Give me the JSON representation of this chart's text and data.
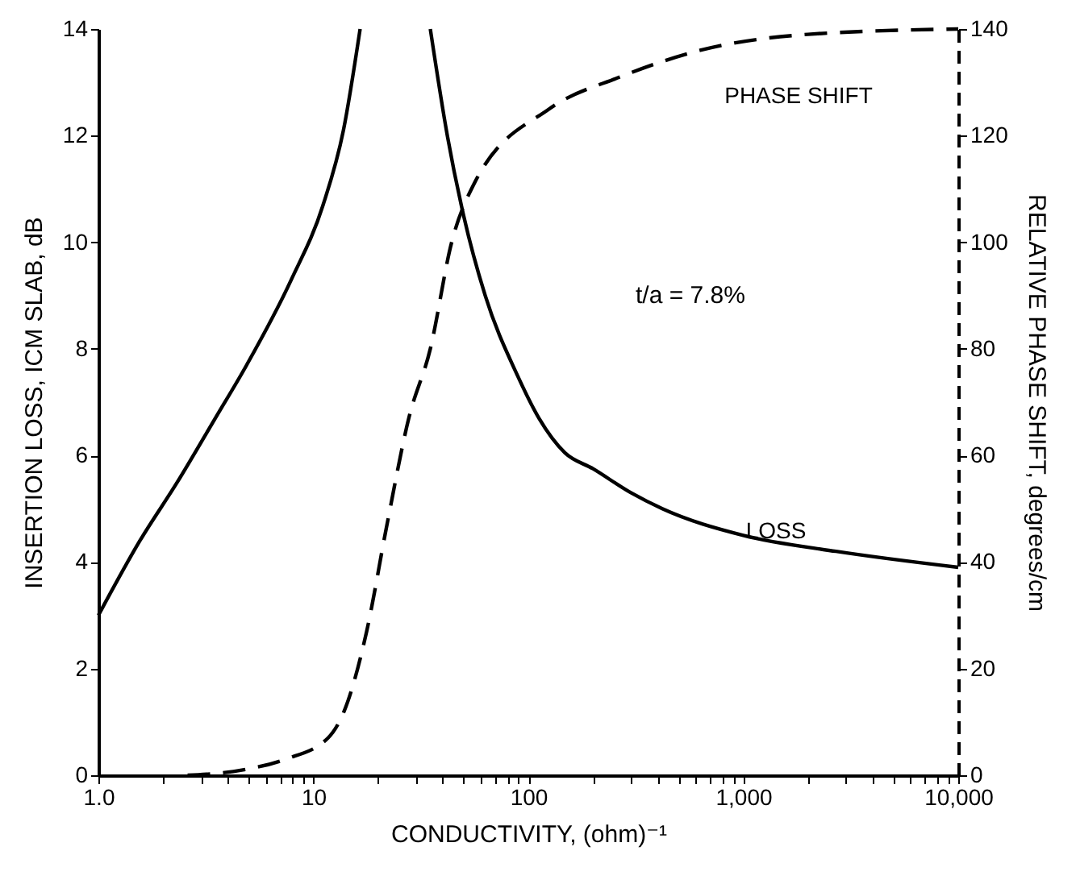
{
  "chart_data": {
    "type": "line",
    "xlabel": "CONDUCTIVITY, (ohm)⁻¹",
    "ylabel": "INSERTION LOSS, ICM SLAB, dB",
    "y2label": "RELATIVE PHASE SHIFT, degrees/cm",
    "annotations": [
      "t/a = 7.8%"
    ],
    "log": "x",
    "grid": false,
    "marker": "none",
    "xlim": [
      1,
      10000
    ],
    "xticks": [
      {
        "value": 1,
        "label": "1.0"
      },
      {
        "value": 2,
        "label": null
      },
      {
        "value": 3,
        "label": null
      },
      {
        "value": 4,
        "label": null
      },
      {
        "value": 5,
        "label": null
      },
      {
        "value": 6,
        "label": null
      },
      {
        "value": 7,
        "label": null
      },
      {
        "value": 8,
        "label": null
      },
      {
        "value": 9,
        "label": null
      },
      10,
      {
        "value": 20,
        "label": null
      },
      {
        "value": 30,
        "label": null
      },
      {
        "value": 40,
        "label": null
      },
      {
        "value": 50,
        "label": null
      },
      {
        "value": 60,
        "label": null
      },
      {
        "value": 70,
        "label": null
      },
      {
        "value": 80,
        "label": null
      },
      {
        "value": 90,
        "label": null
      },
      100,
      {
        "value": 200,
        "label": null
      },
      {
        "value": 300,
        "label": null
      },
      {
        "value": 400,
        "label": null
      },
      {
        "value": 500,
        "label": null
      },
      {
        "value": 600,
        "label": null
      },
      {
        "value": 700,
        "label": null
      },
      {
        "value": 800,
        "label": null
      },
      {
        "value": 900,
        "label": null
      },
      {
        "value": 1000,
        "label": "1,000"
      },
      {
        "value": 2000,
        "label": null
      },
      {
        "value": 3000,
        "label": null
      },
      {
        "value": 4000,
        "label": null
      },
      {
        "value": 5000,
        "label": null
      },
      {
        "value": 6000,
        "label": null
      },
      {
        "value": 7000,
        "label": null
      },
      {
        "value": 8000,
        "label": null
      },
      {
        "value": 9000,
        "label": null
      },
      {
        "value": 10000,
        "label": "10,000"
      }
    ],
    "ylim": [
      0,
      14
    ],
    "yticks": [
      0,
      2,
      4,
      6,
      8,
      10,
      12,
      14
    ],
    "y2lim": [
      0,
      140
    ],
    "y2ticks": [
      0,
      20,
      40,
      60,
      80,
      100,
      120,
      140
    ],
    "series": [
      {
        "name": "LOSS",
        "color": "#000000",
        "line_style": "solid",
        "x": [
          1,
          1.56,
          2.33,
          3.5,
          4.9,
          7.9,
          11.1,
          13.8,
          16.5,
          null,
          35,
          42,
          50,
          63,
          89,
          112,
          148,
          200,
          300,
          420,
          1000,
          2700,
          10000
        ],
        "values": [
          3.0,
          4.4,
          5.5,
          6.7,
          7.7,
          9.3,
          10.7,
          12.1,
          14,
          null,
          14,
          12,
          10.5,
          9.0,
          7.5,
          6.7,
          6.05,
          5.75,
          5.3,
          5.0,
          4.5,
          4.2,
          3.9
        ]
      },
      {
        "name": "PHASE SHIFT",
        "color": "#000000",
        "line_style": "dashed",
        "axis": "y2",
        "x": [
          2.6,
          4.7,
          7.4,
          11.7,
          13.9,
          17.7,
          22,
          27.8,
          35,
          44,
          56,
          125,
          267,
          630,
          2000,
          10000
        ],
        "values": [
          0,
          1,
          3,
          7,
          12,
          27,
          47,
          67,
          80,
          100,
          111,
          125,
          131,
          136,
          139,
          140
        ]
      }
    ]
  }
}
